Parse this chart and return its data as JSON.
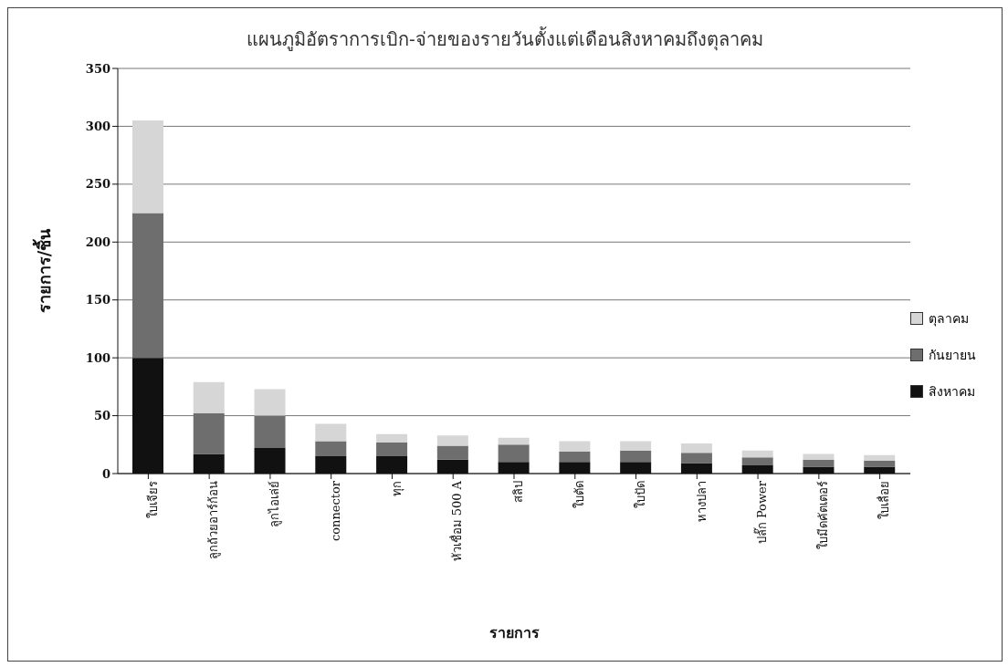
{
  "chart_data": {
    "type": "bar",
    "stacked": true,
    "title": "แผนภูมิอัตราการเบิก-จ่ายของรายวันตั้งแต่เดือนสิงหาคมถึงตุลาคม",
    "xlabel": "รายการ",
    "ylabel": "รายการ/ชิ้น",
    "categories": [
      "ใบเจียร",
      "ลูกถ้วยอาร์ก้อน",
      "ลูกไอเล่ย์",
      "connector",
      "ทุก",
      "หัวเชื่อม 500 A",
      "สลิป",
      "ใบตัด",
      "ใบปัด",
      "หางปลา",
      "ปลั๊ก Power",
      "ใบมีดคัตเตอร์",
      "ใบเลื่อย"
    ],
    "series": [
      {
        "name": "สิงหาคม",
        "color": "#111111",
        "values": [
          100,
          17,
          22,
          15,
          15,
          12,
          10,
          10,
          10,
          9,
          7,
          6,
          6
        ]
      },
      {
        "name": "กันยายน",
        "color": "#6e6e6e",
        "values": [
          125,
          35,
          28,
          13,
          12,
          12,
          15,
          9,
          10,
          9,
          7,
          6,
          5
        ]
      },
      {
        "name": "ตุลาคม",
        "color": "#d6d6d6",
        "values": [
          80,
          27,
          23,
          15,
          7,
          9,
          6,
          9,
          8,
          8,
          6,
          5,
          5
        ]
      }
    ],
    "ylim": [
      0,
      350
    ],
    "yticks": [
      0,
      50,
      100,
      150,
      200,
      250,
      300,
      350
    ],
    "grid": "y",
    "legend": "right"
  }
}
